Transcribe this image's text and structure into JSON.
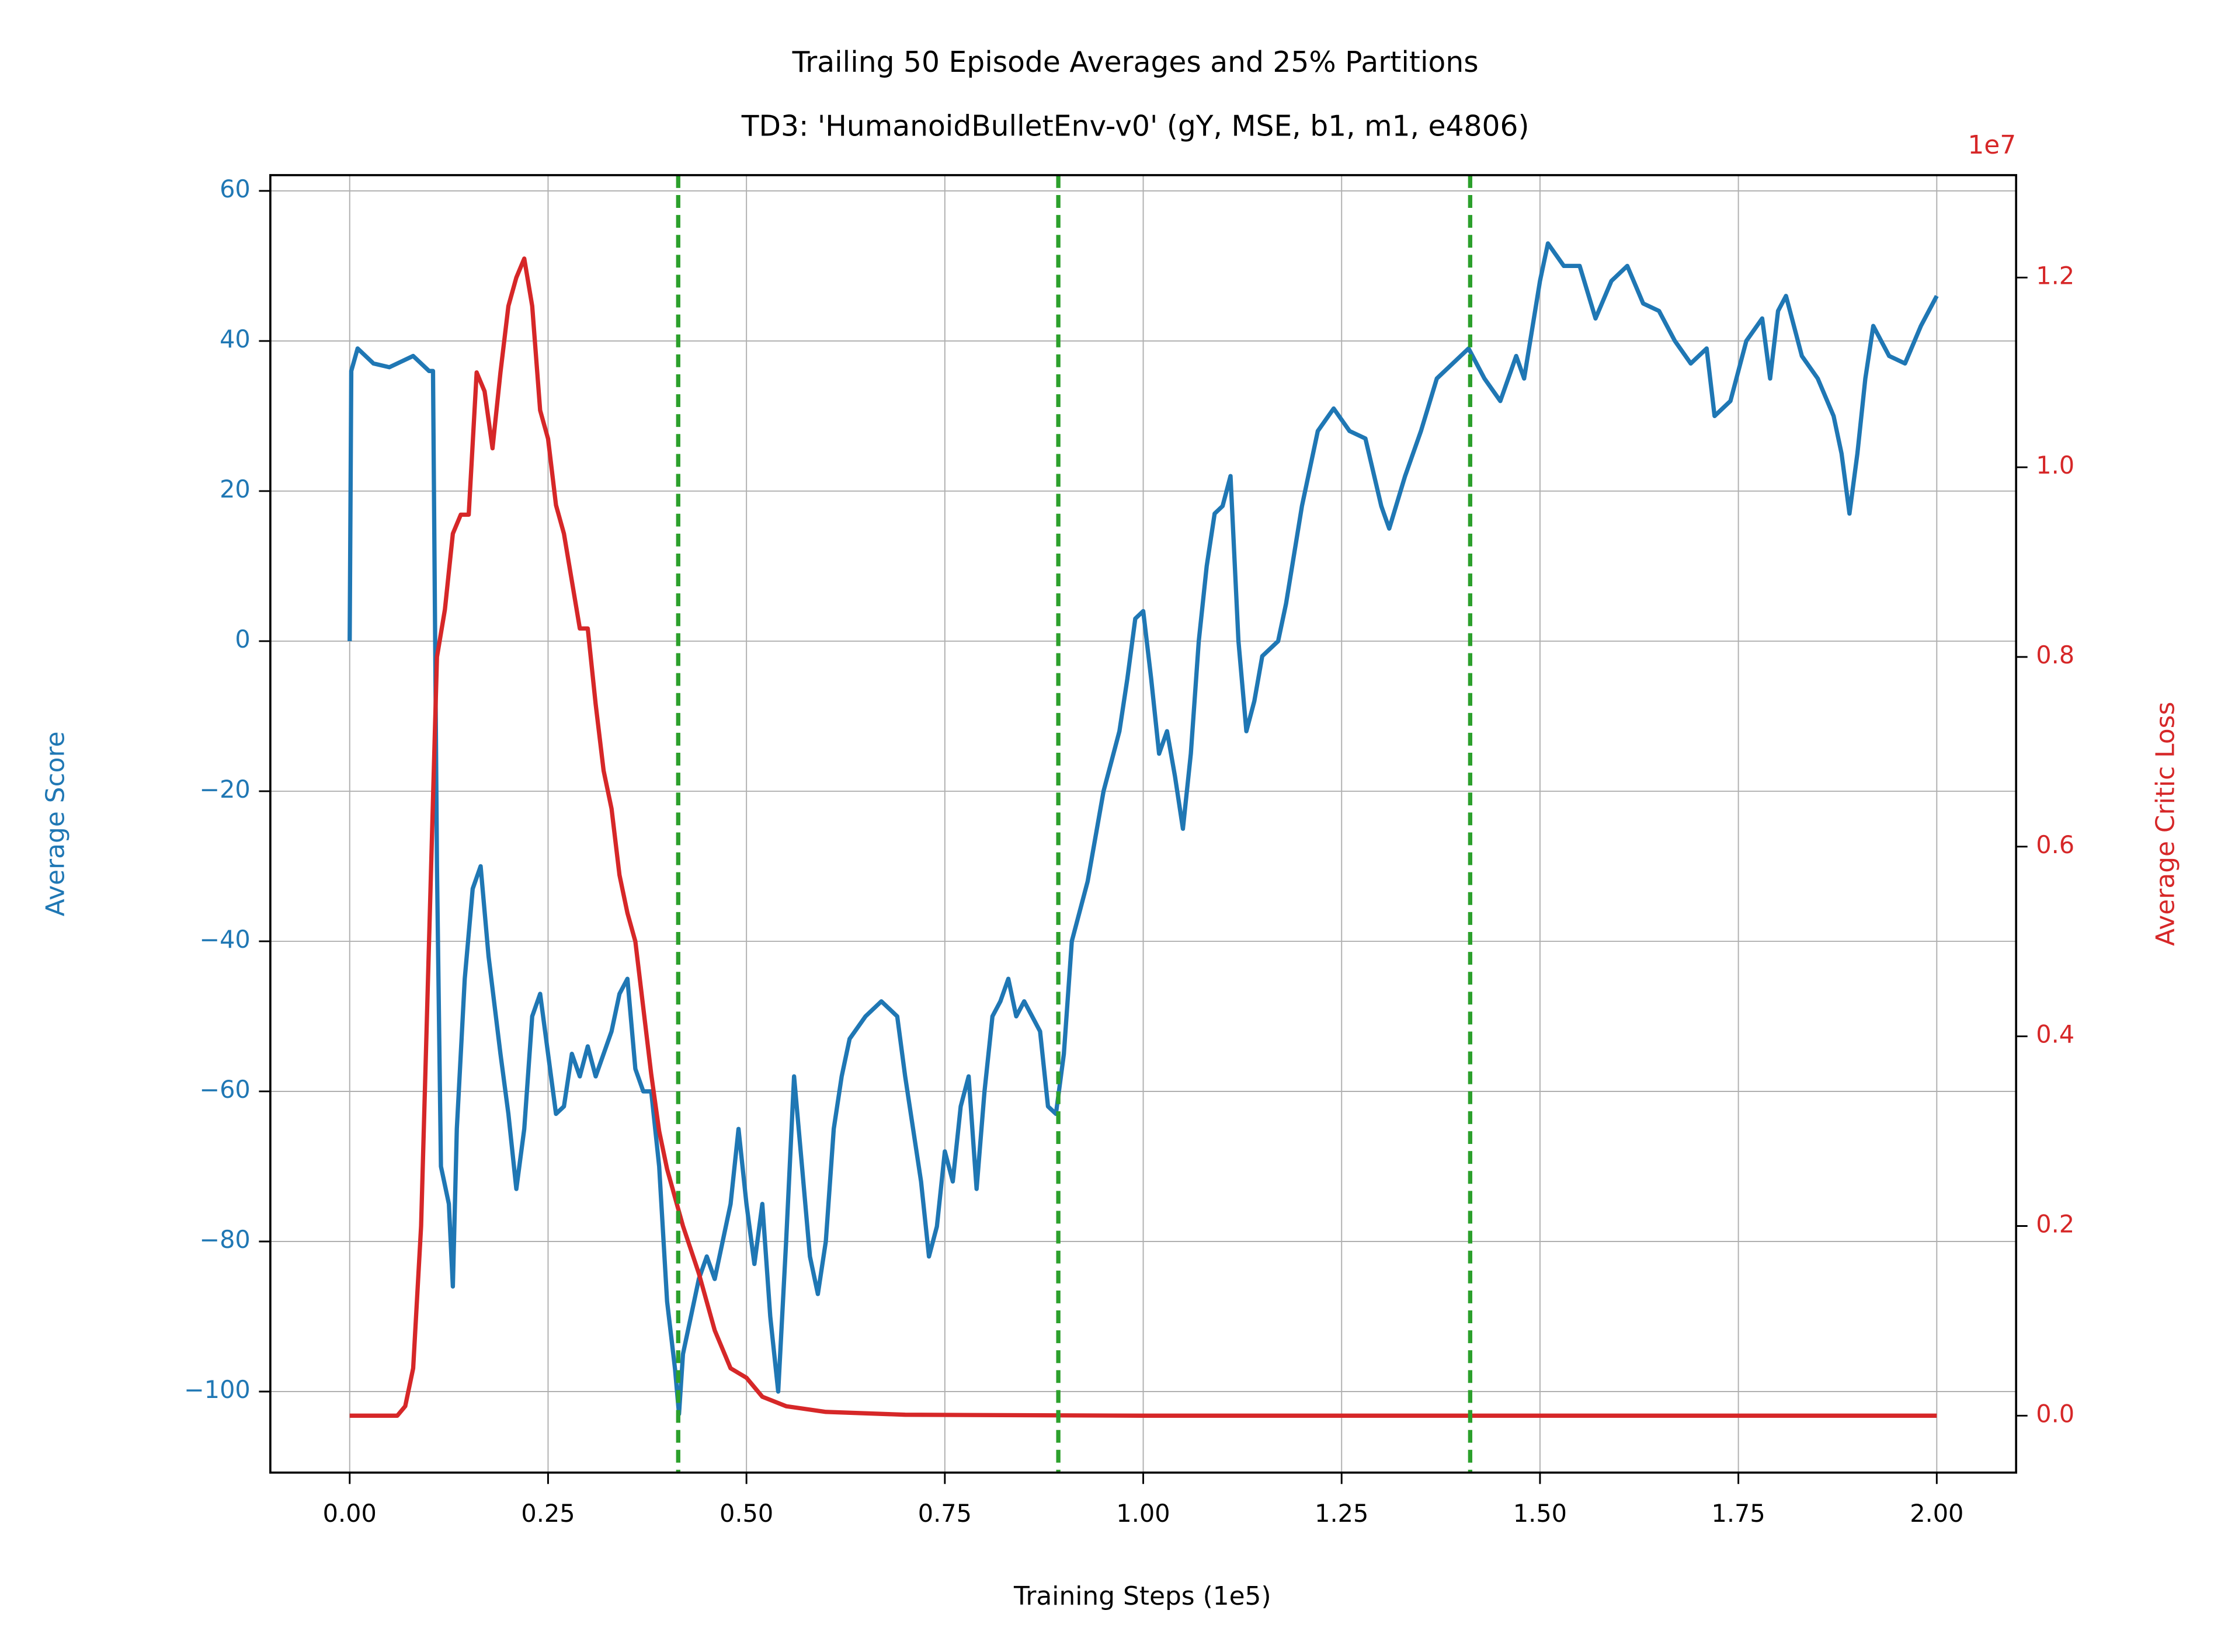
{
  "chart_data": {
    "type": "line",
    "title": "Trailing 50 Episode Averages and 25% Partitions",
    "subtitle": "TD3: 'HumanoidBulletEnv-v0' (gY, MSE, b1, m1, e4806)",
    "x_label": "Training Steps (1e5)",
    "y_label": "Average Score",
    "y2_label": "Average Critic Loss",
    "y2_offset": "1e7",
    "grid": true,
    "xlim": [
      -0.1,
      2.1
    ],
    "xticks": [
      {
        "value": 0,
        "label": "0.00"
      },
      {
        "value": 0.25,
        "label": "0.25"
      },
      {
        "value": 0.5,
        "label": "0.50"
      },
      {
        "value": 0.75,
        "label": "0.75"
      },
      {
        "value": 1,
        "label": "1.00"
      },
      {
        "value": 1.25,
        "label": "1.25"
      },
      {
        "value": 1.5,
        "label": "1.50"
      },
      {
        "value": 1.75,
        "label": "1.75"
      },
      {
        "value": 2,
        "label": "2.00"
      }
    ],
    "ylim": [
      -110.8,
      62.1
    ],
    "yticks": [
      {
        "value": -100,
        "label": "−100"
      },
      {
        "value": -80,
        "label": "−80"
      },
      {
        "value": -60,
        "label": "−60"
      },
      {
        "value": -40,
        "label": "−40"
      },
      {
        "value": -20,
        "label": "−20"
      },
      0,
      20,
      40,
      60
    ],
    "y2lim": [
      -0.06,
      1.308
    ],
    "y2ticks": [
      {
        "value": 0,
        "label": "0.0"
      },
      {
        "value": 0.2,
        "label": "0.2"
      },
      {
        "value": 0.4,
        "label": "0.4"
      },
      {
        "value": 0.6,
        "label": "0.6"
      },
      {
        "value": 0.8,
        "label": "0.8"
      },
      {
        "value": 1,
        "label": "1.0"
      },
      {
        "value": 1.2,
        "label": "1.2"
      }
    ],
    "vlines": {
      "color": "#2ca02c",
      "x": [
        0.414,
        0.893,
        1.412
      ]
    },
    "series": [
      {
        "color": "#1f77b4",
        "axis": "y",
        "x": [
          0,
          0.002,
          0.01,
          0.03,
          0.05,
          0.08,
          0.1,
          0.105,
          0.11,
          0.115,
          0.125,
          0.13,
          0.135,
          0.145,
          0.155,
          0.165,
          0.175,
          0.19,
          0.2,
          0.21,
          0.22,
          0.23,
          0.24,
          0.25,
          0.26,
          0.27,
          0.28,
          0.29,
          0.3,
          0.31,
          0.32,
          0.33,
          0.34,
          0.35,
          0.36,
          0.37,
          0.38,
          0.39,
          0.4,
          0.41,
          0.415,
          0.42,
          0.43,
          0.44,
          0.45,
          0.46,
          0.47,
          0.48,
          0.49,
          0.5,
          0.51,
          0.52,
          0.53,
          0.54,
          0.55,
          0.56,
          0.57,
          0.58,
          0.59,
          0.6,
          0.61,
          0.62,
          0.63,
          0.65,
          0.67,
          0.69,
          0.7,
          0.72,
          0.73,
          0.74,
          0.75,
          0.76,
          0.77,
          0.78,
          0.79,
          0.8,
          0.81,
          0.82,
          0.83,
          0.84,
          0.85,
          0.87,
          0.88,
          0.89,
          0.9,
          0.91,
          0.93,
          0.95,
          0.97,
          0.98,
          0.99,
          1.0,
          1.01,
          1.02,
          1.03,
          1.04,
          1.05,
          1.06,
          1.07,
          1.08,
          1.09,
          1.1,
          1.11,
          1.12,
          1.13,
          1.14,
          1.15,
          1.17,
          1.18,
          1.2,
          1.22,
          1.24,
          1.26,
          1.28,
          1.3,
          1.31,
          1.33,
          1.35,
          1.37,
          1.39,
          1.41,
          1.43,
          1.45,
          1.47,
          1.48,
          1.5,
          1.51,
          1.53,
          1.55,
          1.57,
          1.59,
          1.61,
          1.63,
          1.65,
          1.67,
          1.69,
          1.71,
          1.72,
          1.74,
          1.76,
          1.78,
          1.79,
          1.8,
          1.81,
          1.83,
          1.85,
          1.87,
          1.88,
          1.89,
          1.9,
          1.91,
          1.92,
          1.94,
          1.96,
          1.98,
          2.0
        ],
        "values": [
          0,
          36,
          39,
          37,
          36.5,
          38,
          36,
          36,
          -30,
          -70,
          -75,
          -86,
          -65,
          -45,
          -33,
          -30,
          -42,
          -55,
          -63,
          -73,
          -65,
          -50,
          -47,
          -55,
          -63,
          -62,
          -55,
          -58,
          -54,
          -58,
          -55,
          -52,
          -47,
          -45,
          -57,
          -60,
          -60,
          -70,
          -88,
          -97,
          -103,
          -95,
          -90,
          -85,
          -82,
          -85,
          -80,
          -75,
          -65,
          -75,
          -83,
          -75,
          -90,
          -100,
          -80,
          -58,
          -70,
          -82,
          -87,
          -80,
          -65,
          -58,
          -53,
          -50,
          -48,
          -50,
          -58,
          -72,
          -82,
          -78,
          -68,
          -72,
          -62,
          -58,
          -73,
          -60,
          -50,
          -48,
          -45,
          -50,
          -48,
          -52,
          -62,
          -63,
          -55,
          -40,
          -32,
          -20,
          -12,
          -5,
          3,
          4,
          -5,
          -15,
          -12,
          -18,
          -25,
          -15,
          0,
          10,
          17,
          18,
          22,
          0,
          -12,
          -8,
          -2,
          0,
          5,
          18,
          28,
          31,
          28,
          27,
          18,
          15,
          22,
          28,
          35,
          37,
          39,
          35,
          32,
          38,
          35,
          48,
          53,
          50,
          50,
          43,
          48,
          50,
          45,
          44,
          40,
          37,
          39,
          30,
          32,
          40,
          43,
          35,
          44,
          46,
          38,
          35,
          30,
          25,
          17,
          25,
          35,
          42,
          38,
          37,
          42,
          46
        ]
      },
      {
        "color": "#d62728",
        "axis": "y2",
        "x": [
          0,
          0.06,
          0.07,
          0.08,
          0.09,
          0.1,
          0.11,
          0.12,
          0.13,
          0.14,
          0.15,
          0.16,
          0.17,
          0.18,
          0.19,
          0.2,
          0.21,
          0.22,
          0.23,
          0.24,
          0.25,
          0.26,
          0.27,
          0.28,
          0.29,
          0.3,
          0.31,
          0.32,
          0.33,
          0.34,
          0.35,
          0.36,
          0.37,
          0.38,
          0.39,
          0.4,
          0.42,
          0.44,
          0.46,
          0.48,
          0.5,
          0.52,
          0.55,
          0.6,
          0.7,
          1.0,
          2.0
        ],
        "values": [
          0,
          0,
          0.01,
          0.05,
          0.2,
          0.5,
          0.8,
          0.85,
          0.93,
          0.95,
          0.95,
          1.1,
          1.08,
          1.02,
          1.1,
          1.17,
          1.2,
          1.22,
          1.17,
          1.06,
          1.03,
          0.96,
          0.93,
          0.88,
          0.83,
          0.83,
          0.75,
          0.68,
          0.64,
          0.57,
          0.53,
          0.5,
          0.43,
          0.36,
          0.3,
          0.26,
          0.2,
          0.15,
          0.09,
          0.05,
          0.04,
          0.02,
          0.01,
          0.004,
          0.001,
          0,
          0
        ]
      }
    ]
  }
}
